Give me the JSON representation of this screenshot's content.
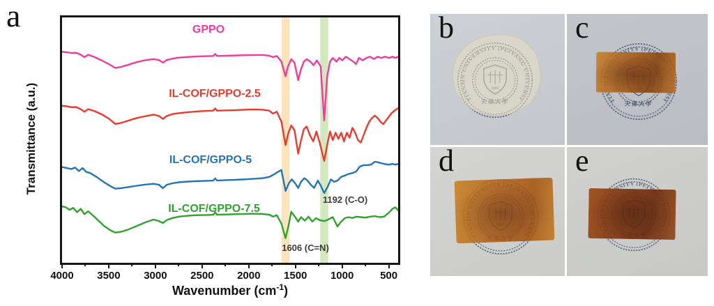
{
  "panels": {
    "a": "a",
    "b": "b",
    "c": "c",
    "d": "d",
    "e": "e"
  },
  "chart_data": {
    "type": "line",
    "title": "",
    "xlabel": "Wavenumber (cm-1)",
    "xlabel_parts": {
      "prefix": "Wavenumber (cm",
      "sup": "-1",
      "suffix": ")"
    },
    "ylabel": "Transmittance (a.u.)",
    "x_range": [
      4000,
      400
    ],
    "x_axis_reversed": true,
    "x_ticks": [
      4000,
      3500,
      3000,
      2500,
      2000,
      1500,
      1000,
      500
    ],
    "grid": false,
    "legend_position": "inline-above-each-curve",
    "y_units": "arbitrary (stacked offsets, 0-100 scale)",
    "annotations": [
      {
        "wavenumber": 1606,
        "text": "1606 (C=N)"
      },
      {
        "wavenumber": 1192,
        "text": "1192 (C-O)"
      }
    ],
    "highlight_bands": [
      {
        "center": 1606,
        "width": 85,
        "color": "#F6C46F"
      },
      {
        "center": 1192,
        "width": 85,
        "color": "#9FCB70"
      }
    ],
    "series": [
      {
        "name": "GPPO",
        "color": "#EE3C9C",
        "points": [
          [
            4000,
            86
          ],
          [
            3950,
            85.8
          ],
          [
            3900,
            85.5
          ],
          [
            3850,
            85.6
          ],
          [
            3800,
            84.8
          ],
          [
            3760,
            83.8
          ],
          [
            3720,
            84.8
          ],
          [
            3650,
            83.8
          ],
          [
            3570,
            82.4
          ],
          [
            3500,
            81
          ],
          [
            3430,
            79.4
          ],
          [
            3370,
            79.8
          ],
          [
            3300,
            80.6
          ],
          [
            3200,
            81.8
          ],
          [
            3100,
            82.6
          ],
          [
            3020,
            83
          ],
          [
            2960,
            82.6
          ],
          [
            2920,
            81.6
          ],
          [
            2880,
            82.6
          ],
          [
            2820,
            83.2
          ],
          [
            2750,
            83.6
          ],
          [
            2650,
            83.9
          ],
          [
            2550,
            84.1
          ],
          [
            2450,
            84.2
          ],
          [
            2380,
            84.3
          ],
          [
            2360,
            85.1
          ],
          [
            2340,
            84.3
          ],
          [
            2250,
            84.4
          ],
          [
            2150,
            84.5
          ],
          [
            2050,
            84.6
          ],
          [
            1950,
            84.7
          ],
          [
            1850,
            84.7
          ],
          [
            1780,
            84.4
          ],
          [
            1740,
            83.8
          ],
          [
            1700,
            84.3
          ],
          [
            1650,
            82
          ],
          [
            1606,
            76
          ],
          [
            1580,
            80
          ],
          [
            1545,
            83
          ],
          [
            1510,
            81.5
          ],
          [
            1470,
            74.4
          ],
          [
            1440,
            79
          ],
          [
            1410,
            82
          ],
          [
            1380,
            83
          ],
          [
            1340,
            82
          ],
          [
            1306,
            80.5
          ],
          [
            1270,
            82.5
          ],
          [
            1230,
            80
          ],
          [
            1192,
            58
          ],
          [
            1160,
            76
          ],
          [
            1130,
            82
          ],
          [
            1100,
            83.5
          ],
          [
            1060,
            82
          ],
          [
            1030,
            83.5
          ],
          [
            1000,
            82.5
          ],
          [
            960,
            84
          ],
          [
            920,
            83
          ],
          [
            880,
            82
          ],
          [
            850,
            81
          ],
          [
            820,
            83.5
          ],
          [
            780,
            82.5
          ],
          [
            740,
            83.5
          ],
          [
            700,
            84
          ],
          [
            660,
            83
          ],
          [
            620,
            84
          ],
          [
            580,
            83.5
          ],
          [
            540,
            84
          ],
          [
            500,
            83.5
          ],
          [
            460,
            84
          ],
          [
            430,
            83.5
          ],
          [
            400,
            84
          ]
        ]
      },
      {
        "name": "IL-COF/GPPO-2.5",
        "color": "#E93A2E",
        "points": [
          [
            4000,
            64
          ],
          [
            3950,
            63.8
          ],
          [
            3900,
            63.4
          ],
          [
            3850,
            63.5
          ],
          [
            3800,
            62.6
          ],
          [
            3760,
            61.6
          ],
          [
            3720,
            62.6
          ],
          [
            3650,
            61.8
          ],
          [
            3570,
            60.4
          ],
          [
            3500,
            58.8
          ],
          [
            3430,
            56.6
          ],
          [
            3370,
            57
          ],
          [
            3300,
            57.8
          ],
          [
            3200,
            59
          ],
          [
            3100,
            59.8
          ],
          [
            3020,
            60.4
          ],
          [
            2960,
            59.8
          ],
          [
            2920,
            58.6
          ],
          [
            2880,
            59.8
          ],
          [
            2820,
            60.6
          ],
          [
            2750,
            61
          ],
          [
            2650,
            61.4
          ],
          [
            2550,
            61.7
          ],
          [
            2450,
            61.9
          ],
          [
            2380,
            62
          ],
          [
            2360,
            62.9
          ],
          [
            2340,
            62
          ],
          [
            2250,
            62.1
          ],
          [
            2150,
            62.2
          ],
          [
            2050,
            62.4
          ],
          [
            1950,
            62.5
          ],
          [
            1850,
            62.4
          ],
          [
            1780,
            62
          ],
          [
            1740,
            60.8
          ],
          [
            1700,
            61.6
          ],
          [
            1650,
            57.5
          ],
          [
            1606,
            48
          ],
          [
            1575,
            53
          ],
          [
            1545,
            56
          ],
          [
            1510,
            54
          ],
          [
            1470,
            44.5
          ],
          [
            1440,
            50
          ],
          [
            1410,
            54.5
          ],
          [
            1380,
            55.5
          ],
          [
            1345,
            52
          ],
          [
            1310,
            49.5
          ],
          [
            1275,
            53.5
          ],
          [
            1240,
            49
          ],
          [
            1192,
            41.5
          ],
          [
            1160,
            48
          ],
          [
            1130,
            53.5
          ],
          [
            1100,
            50
          ],
          [
            1070,
            53
          ],
          [
            1040,
            50.5
          ],
          [
            1010,
            53
          ],
          [
            980,
            49.5
          ],
          [
            950,
            53
          ],
          [
            920,
            51
          ],
          [
            890,
            55
          ],
          [
            860,
            53
          ],
          [
            830,
            50
          ],
          [
            800,
            49
          ],
          [
            770,
            52
          ],
          [
            740,
            55
          ],
          [
            710,
            57.5
          ],
          [
            680,
            59
          ],
          [
            650,
            60
          ],
          [
            620,
            59
          ],
          [
            590,
            57.5
          ],
          [
            560,
            56.5
          ],
          [
            530,
            58
          ],
          [
            500,
            59.5
          ],
          [
            470,
            61
          ],
          [
            440,
            62
          ],
          [
            420,
            62.5
          ],
          [
            400,
            63
          ]
        ]
      },
      {
        "name": "IL-COF/GPPO-5",
        "color": "#2473B5",
        "points": [
          [
            4000,
            39
          ],
          [
            3950,
            38.6
          ],
          [
            3900,
            38.2
          ],
          [
            3860,
            38.8
          ],
          [
            3820,
            37.4
          ],
          [
            3780,
            38.6
          ],
          [
            3740,
            37
          ],
          [
            3700,
            36.6
          ],
          [
            3630,
            35
          ],
          [
            3550,
            32.8
          ],
          [
            3480,
            31.2
          ],
          [
            3430,
            30.2
          ],
          [
            3370,
            30.4
          ],
          [
            3300,
            30.8
          ],
          [
            3200,
            31.4
          ],
          [
            3100,
            31.9
          ],
          [
            3020,
            32.2
          ],
          [
            2960,
            31.8
          ],
          [
            2920,
            30.4
          ],
          [
            2880,
            31.8
          ],
          [
            2820,
            32.4
          ],
          [
            2750,
            32.8
          ],
          [
            2650,
            33.1
          ],
          [
            2550,
            33.3
          ],
          [
            2450,
            33.4
          ],
          [
            2380,
            33.5
          ],
          [
            2360,
            34.4
          ],
          [
            2340,
            33.5
          ],
          [
            2250,
            33.7
          ],
          [
            2150,
            33.8
          ],
          [
            2050,
            34
          ],
          [
            1950,
            34.2
          ],
          [
            1850,
            34.5
          ],
          [
            1780,
            35
          ],
          [
            1730,
            36
          ],
          [
            1690,
            37
          ],
          [
            1650,
            37.8
          ],
          [
            1606,
            29.3
          ],
          [
            1570,
            32.5
          ],
          [
            1540,
            34
          ],
          [
            1505,
            32.5
          ],
          [
            1470,
            30.5
          ],
          [
            1440,
            33
          ],
          [
            1405,
            34.5
          ],
          [
            1370,
            33.5
          ],
          [
            1335,
            31.8
          ],
          [
            1300,
            30.5
          ],
          [
            1260,
            33.5
          ],
          [
            1230,
            31.5
          ],
          [
            1192,
            28.4
          ],
          [
            1155,
            31
          ],
          [
            1120,
            34
          ],
          [
            1085,
            33
          ],
          [
            1050,
            33.5
          ],
          [
            1010,
            35
          ],
          [
            970,
            35.6
          ],
          [
            930,
            36.2
          ],
          [
            890,
            36.6
          ],
          [
            850,
            37.2
          ],
          [
            810,
            39.2
          ],
          [
            770,
            39.8
          ],
          [
            730,
            39.8
          ],
          [
            690,
            40
          ],
          [
            650,
            41.2
          ],
          [
            620,
            41
          ],
          [
            580,
            40.6
          ],
          [
            540,
            40.2
          ],
          [
            500,
            40
          ],
          [
            460,
            40.3
          ],
          [
            430,
            40
          ],
          [
            400,
            40.3
          ]
        ]
      },
      {
        "name": "IL-COF/GPPO-7.5",
        "color": "#2FA32E",
        "points": [
          [
            4000,
            23
          ],
          [
            3960,
            22.6
          ],
          [
            3920,
            21.6
          ],
          [
            3880,
            22.4
          ],
          [
            3840,
            20.6
          ],
          [
            3800,
            22
          ],
          [
            3760,
            19.8
          ],
          [
            3720,
            21
          ],
          [
            3650,
            18.6
          ],
          [
            3550,
            15
          ],
          [
            3480,
            13.2
          ],
          [
            3430,
            12.3
          ],
          [
            3370,
            12.6
          ],
          [
            3300,
            13.4
          ],
          [
            3200,
            15
          ],
          [
            3100,
            16.6
          ],
          [
            3020,
            17.6
          ],
          [
            2960,
            17
          ],
          [
            2920,
            16.2
          ],
          [
            2880,
            17.4
          ],
          [
            2820,
            18.2
          ],
          [
            2750,
            18.8
          ],
          [
            2650,
            19.2
          ],
          [
            2550,
            19.4
          ],
          [
            2450,
            19.5
          ],
          [
            2380,
            19.6
          ],
          [
            2360,
            20.6
          ],
          [
            2340,
            19.6
          ],
          [
            2250,
            19.7
          ],
          [
            2150,
            19.8
          ],
          [
            2050,
            19.9
          ],
          [
            1950,
            20
          ],
          [
            1850,
            19.9
          ],
          [
            1780,
            19.6
          ],
          [
            1740,
            18.8
          ],
          [
            1700,
            19.4
          ],
          [
            1650,
            16
          ],
          [
            1606,
            10
          ],
          [
            1575,
            15
          ],
          [
            1545,
            20.8
          ],
          [
            1510,
            19
          ],
          [
            1470,
            16.8
          ],
          [
            1440,
            18.6
          ],
          [
            1400,
            17.2
          ],
          [
            1360,
            18.8
          ],
          [
            1320,
            16.8
          ],
          [
            1280,
            18.2
          ],
          [
            1240,
            17.4
          ],
          [
            1192,
            17
          ],
          [
            1150,
            17.6
          ],
          [
            1100,
            18.6
          ],
          [
            1050,
            14.8
          ],
          [
            1010,
            16.8
          ],
          [
            970,
            18.2
          ],
          [
            930,
            18.6
          ],
          [
            890,
            18.2
          ],
          [
            850,
            18.8
          ],
          [
            800,
            18.6
          ],
          [
            750,
            18.4
          ],
          [
            700,
            18.8
          ],
          [
            650,
            19
          ],
          [
            600,
            18.6
          ],
          [
            550,
            18.8
          ],
          [
            500,
            20.4
          ],
          [
            460,
            22
          ],
          [
            430,
            22.6
          ],
          [
            400,
            21.4
          ]
        ]
      }
    ]
  },
  "seal": {
    "arc_text": "TIANJIN UNIVERSITY (PEIYANG UNIVERSITY)",
    "year": "1895",
    "bottom_text": "天津大学",
    "color": "#44526A"
  },
  "photo_films": {
    "b_color": "#EDE2C4",
    "c_color": "#B06018",
    "d_color": "#BE7420",
    "e_color": "#833A12"
  }
}
